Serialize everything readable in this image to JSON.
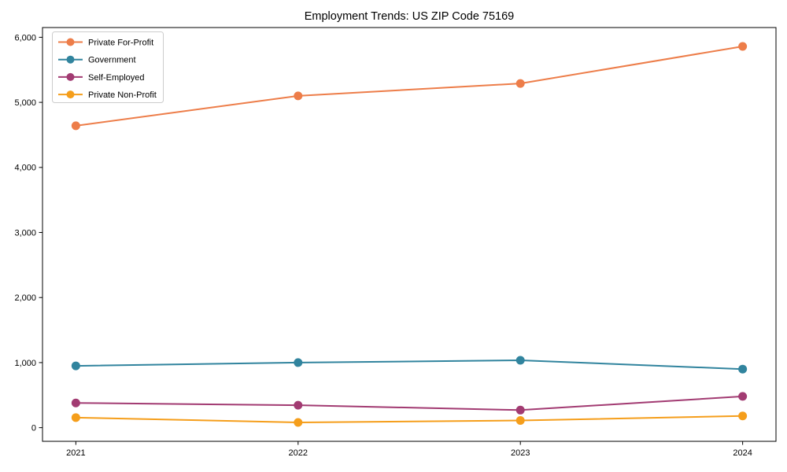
{
  "chart_data": {
    "type": "line",
    "title": "Employment Trends: US ZIP Code 75169",
    "xlabel": "",
    "ylabel": "",
    "x": [
      2021,
      2022,
      2023,
      2024
    ],
    "x_tick_labels": [
      "2021",
      "2022",
      "2023",
      "2024"
    ],
    "y_ticks": [
      0,
      1000,
      2000,
      3000,
      4000,
      5000,
      6000
    ],
    "y_tick_labels": [
      "0",
      "1,000",
      "2,000",
      "3,000",
      "4,000",
      "5,000",
      "6,000"
    ],
    "xlim": [
      2020.85,
      2024.15
    ],
    "ylim": [
      -210,
      6150
    ],
    "grid": false,
    "legend_position": "upper-left",
    "axis_color": "#000000",
    "legend_border_color": "#cccccc",
    "background": "#ffffff",
    "series": [
      {
        "name": "Private For-Profit",
        "color": "#ED7D49",
        "values": [
          4640,
          5100,
          5290,
          5860
        ]
      },
      {
        "name": "Government",
        "color": "#31849E",
        "values": [
          950,
          1000,
          1035,
          900
        ]
      },
      {
        "name": "Self-Employed",
        "color": "#A23B72",
        "values": [
          380,
          345,
          270,
          480
        ]
      },
      {
        "name": "Private Non-Profit",
        "color": "#F59E1B",
        "values": [
          155,
          80,
          110,
          180
        ]
      }
    ]
  }
}
